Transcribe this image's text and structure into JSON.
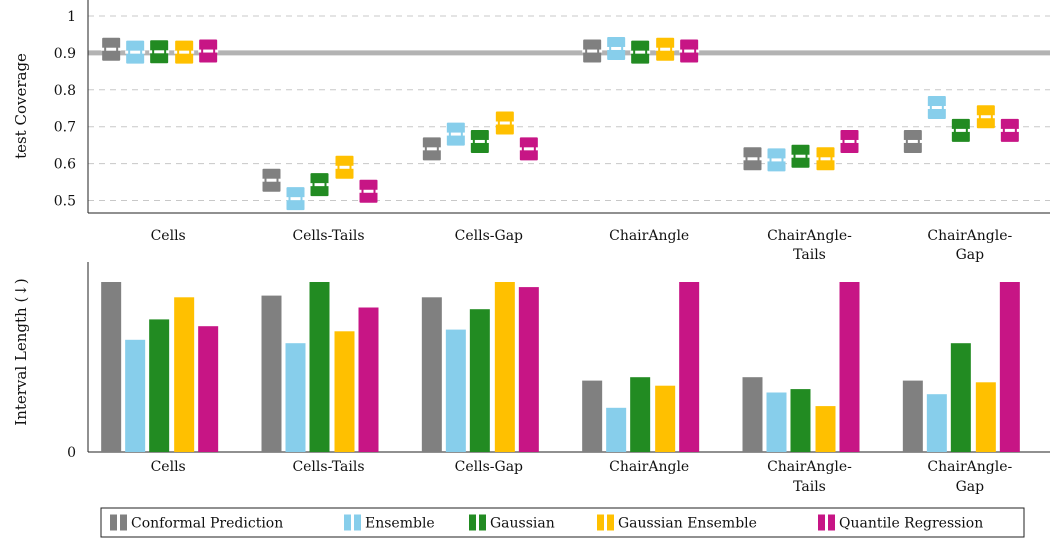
{
  "chart_data": [
    {
      "type": "scatter",
      "ylabel": "test Coverage",
      "ylim": [
        0.455,
        1.0
      ],
      "yticks": [
        "0.5",
        "0.6",
        "0.7",
        "0.8",
        "0.9",
        "1"
      ],
      "reference_line": 0.9,
      "grid": "horizontal dashed",
      "categories": [
        "Cells",
        "Cells-Tails",
        "Cells-Gap",
        "ChairAngle",
        "ChairAngle-Tails",
        "ChairAngle-Gap"
      ],
      "category_lines": [
        [
          "Cells"
        ],
        [
          "Cells-Tails"
        ],
        [
          "Cells-Gap"
        ],
        [
          "ChairAngle"
        ],
        [
          "ChairAngle-",
          "Tails"
        ],
        [
          "ChairAngle-",
          "Gap"
        ]
      ],
      "series": [
        {
          "name": "Conformal Prediction",
          "color": "#808080",
          "values": [
            0.91,
            0.555,
            0.64,
            0.905,
            0.613,
            0.66
          ]
        },
        {
          "name": "Ensemble",
          "color": "#87ceeb",
          "values": [
            0.902,
            0.505,
            0.68,
            0.912,
            0.61,
            0.752
          ]
        },
        {
          "name": "Gaussian",
          "color": "#228b22",
          "values": [
            0.903,
            0.543,
            0.66,
            0.902,
            0.62,
            0.69
          ]
        },
        {
          "name": "Gaussian Ensemble",
          "color": "#ffc000",
          "values": [
            0.902,
            0.59,
            0.71,
            0.91,
            0.613,
            0.727
          ]
        },
        {
          "name": "Quantile Regression",
          "color": "#c71585",
          "values": [
            0.905,
            0.525,
            0.64,
            0.905,
            0.66,
            0.69
          ]
        }
      ]
    },
    {
      "type": "bar",
      "ylabel": "Interval Length (↓)",
      "ylim": [
        0,
        1.0
      ],
      "yticks": [
        "0"
      ],
      "categories": [
        "Cells",
        "Cells-Tails",
        "Cells-Gap",
        "ChairAngle",
        "ChairAngle-Tails",
        "ChairAngle-Gap"
      ],
      "category_lines": [
        [
          "Cells"
        ],
        [
          "Cells-Tails"
        ],
        [
          "Cells-Gap"
        ],
        [
          "ChairAngle"
        ],
        [
          "ChairAngle-",
          "Tails"
        ],
        [
          "ChairAngle-",
          "Gap"
        ]
      ],
      "series": [
        {
          "name": "Conformal Prediction",
          "color": "#808080",
          "values": [
            1.0,
            0.92,
            0.91,
            0.42,
            0.44,
            0.42
          ]
        },
        {
          "name": "Ensemble",
          "color": "#87ceeb",
          "values": [
            0.66,
            0.64,
            0.72,
            0.26,
            0.35,
            0.34
          ]
        },
        {
          "name": "Gaussian",
          "color": "#228b22",
          "values": [
            0.78,
            1.0,
            0.84,
            0.44,
            0.37,
            0.64
          ]
        },
        {
          "name": "Gaussian Ensemble",
          "color": "#ffc000",
          "values": [
            0.91,
            0.71,
            1.0,
            0.39,
            0.27,
            0.41
          ]
        },
        {
          "name": "Quantile Regression",
          "color": "#c71585",
          "values": [
            0.74,
            0.85,
            0.97,
            1.0,
            1.0,
            1.0
          ]
        }
      ]
    }
  ],
  "legend": {
    "placement": "bottom-center",
    "items": [
      "Conformal Prediction",
      "Ensemble",
      "Gaussian",
      "Gaussian Ensemble",
      "Quantile Regression"
    ]
  }
}
